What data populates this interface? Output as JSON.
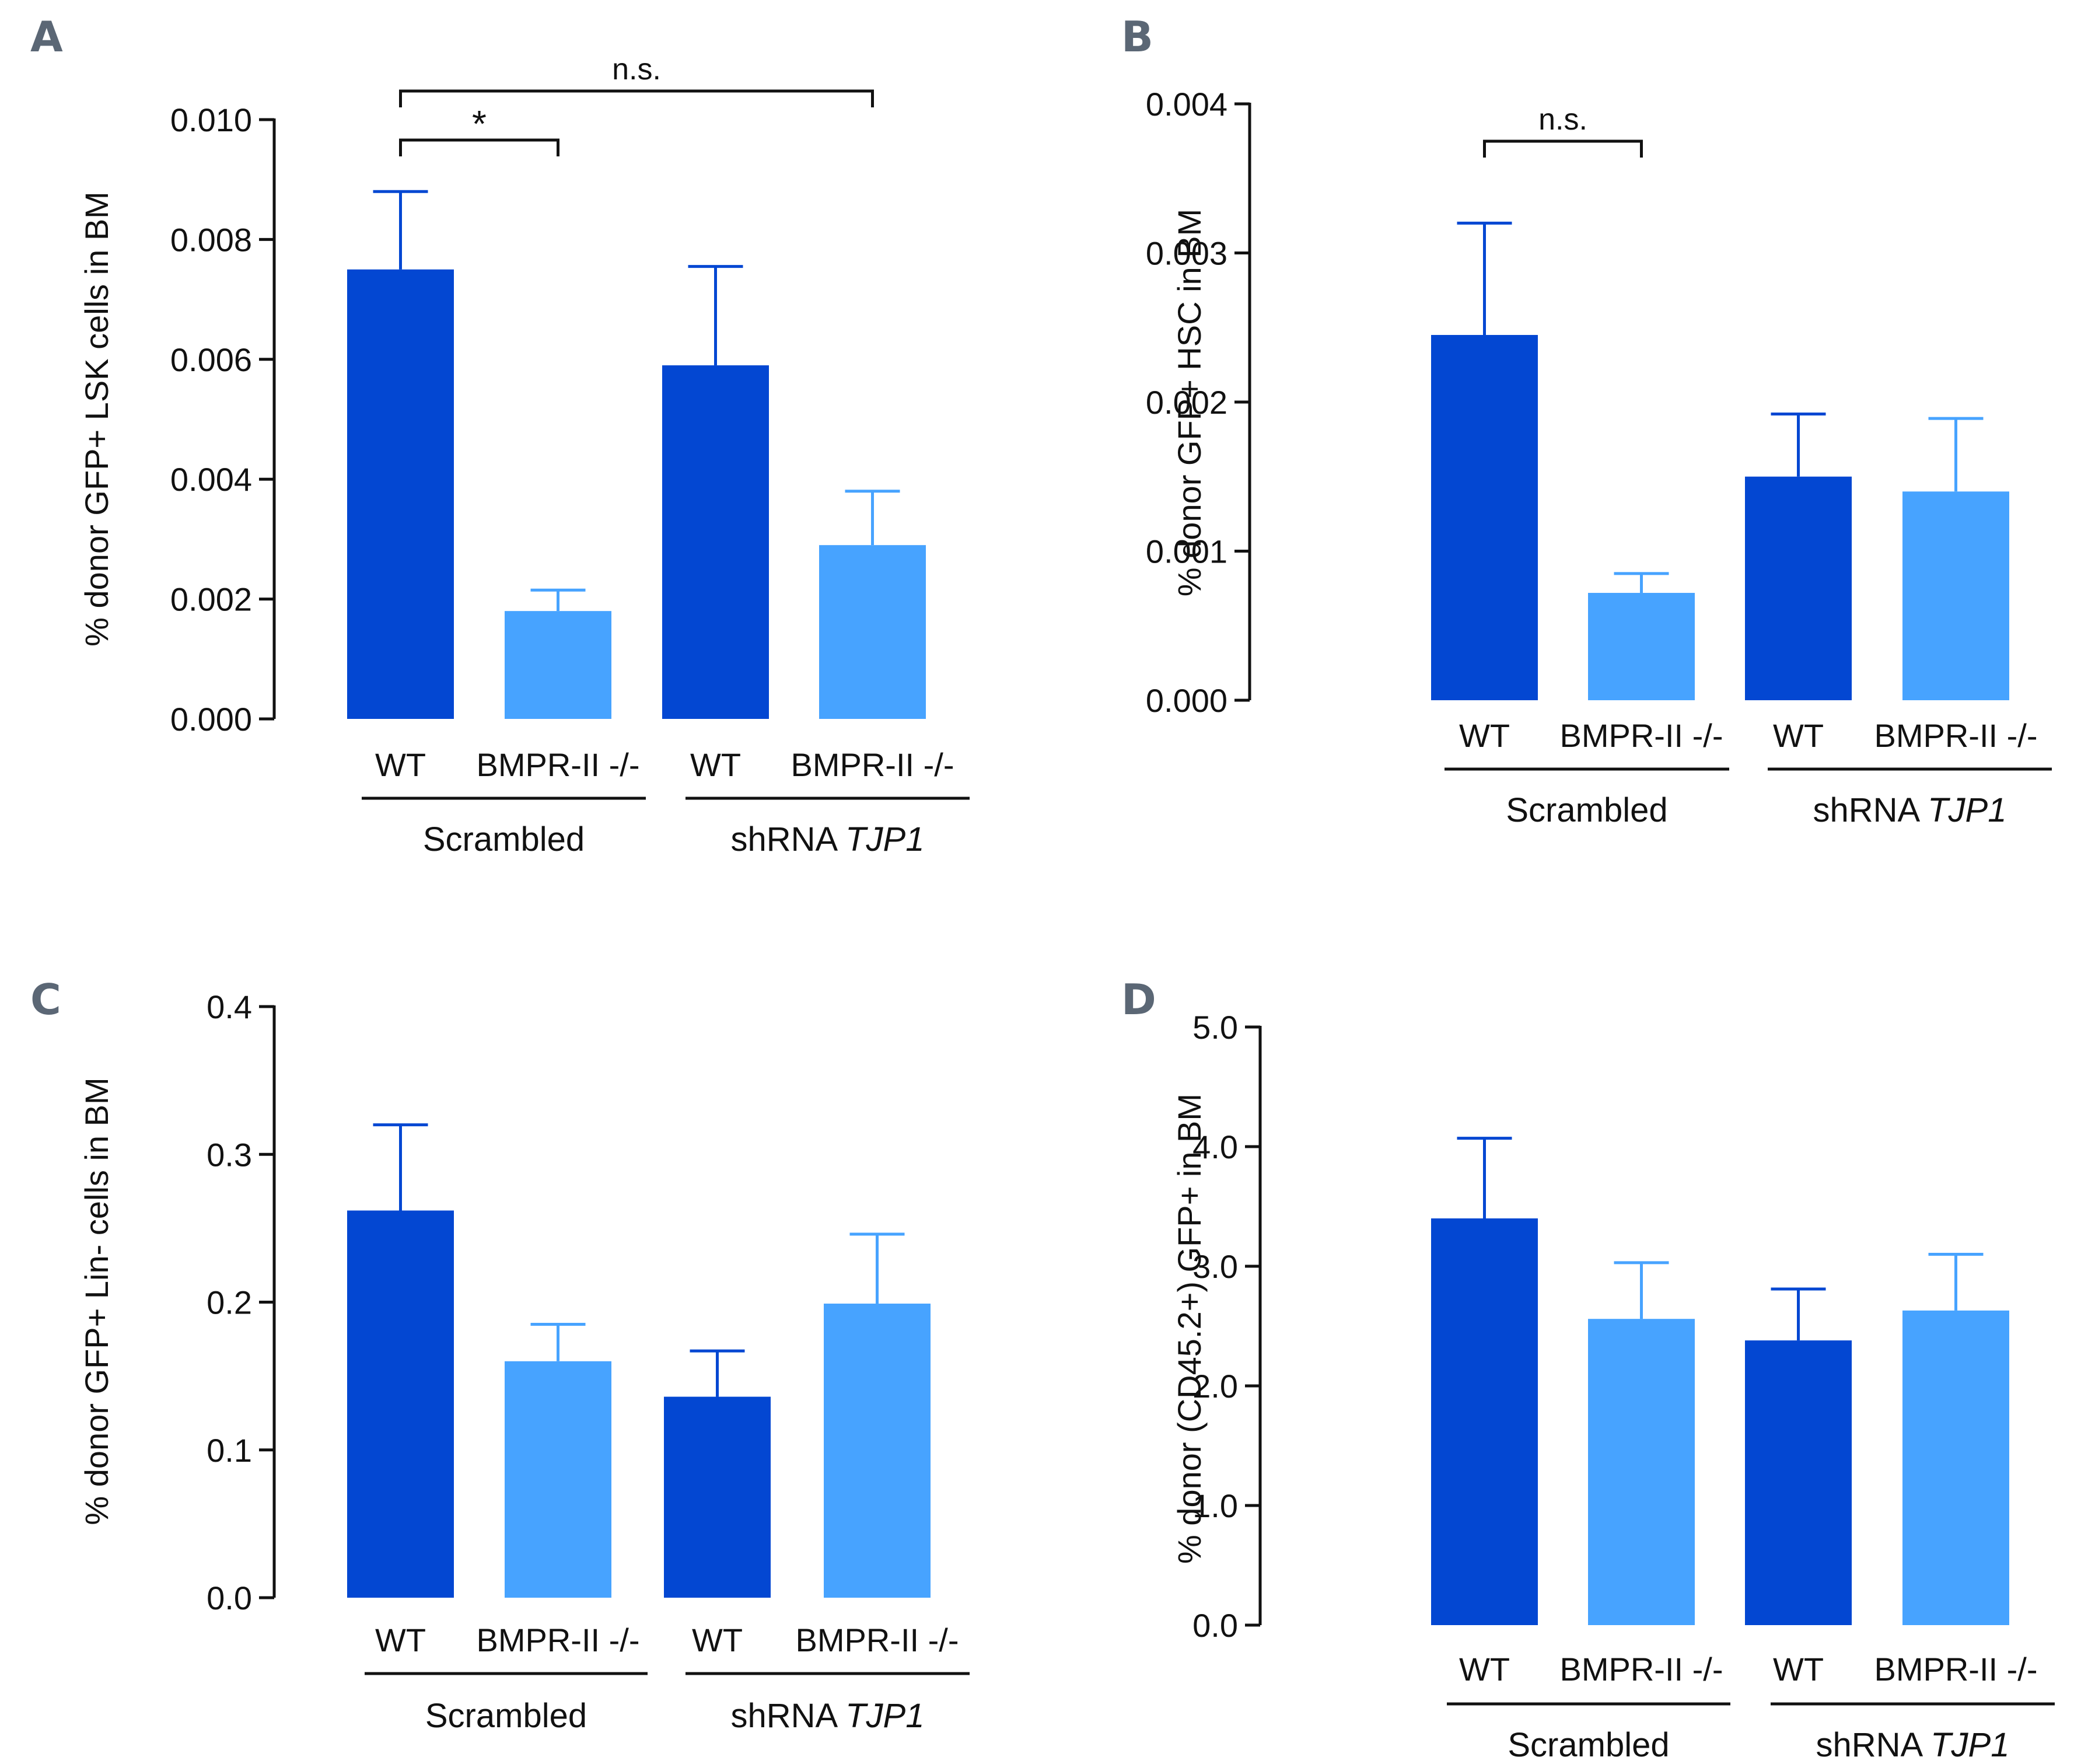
{
  "colors": {
    "wt": "#0347d2",
    "ko": "#47a3ff",
    "ink": "#111111",
    "panel": "#5b6775"
  },
  "chart_data": [
    {
      "type": "bar",
      "panel": "A",
      "ylabel": "% donor GFP+ LSK cells in BM",
      "ylim": [
        0,
        0.01
      ],
      "yticks": [
        "0.000",
        "0.002",
        "0.004",
        "0.006",
        "0.008",
        "0.010"
      ],
      "categories": [
        "WT",
        "BMPR-II -/-",
        "WT",
        "BMPR-II -/-"
      ],
      "values": [
        0.0075,
        0.0018,
        0.0059,
        0.0029
      ],
      "errors": [
        0.0013,
        0.00035,
        0.00165,
        0.0009
      ],
      "groups": [
        {
          "label": "Scrambled",
          "italic": ""
        },
        {
          "label": "shRNA ",
          "italic": "TJP1"
        }
      ],
      "annotations": [
        {
          "label": "*",
          "from": 0,
          "to": 1,
          "level": 0
        },
        {
          "label": "n.s.",
          "from": 0,
          "to": 3,
          "level": 1
        }
      ]
    },
    {
      "type": "bar",
      "panel": "B",
      "ylabel": "% donor GFP+ HSC in BM",
      "ylim": [
        0,
        0.004
      ],
      "yticks": [
        "0.000",
        "0.001",
        "0.002",
        "0.003",
        "0.004"
      ],
      "categories": [
        "WT",
        "BMPR-II -/-",
        "WT",
        "BMPR-II -/-"
      ],
      "values": [
        0.00245,
        0.00072,
        0.0015,
        0.0014
      ],
      "errors": [
        0.00075,
        0.00013,
        0.00042,
        0.00049
      ],
      "groups": [
        {
          "label": "Scrambled",
          "italic": ""
        },
        {
          "label": "shRNA ",
          "italic": "TJP1"
        }
      ],
      "annotations": [
        {
          "label": "n.s.",
          "from": 0,
          "to": 1,
          "level": 0
        }
      ]
    },
    {
      "type": "bar",
      "panel": "C",
      "ylabel": "% donor GFP+ Lin- cells in BM",
      "ylim": [
        0,
        0.4
      ],
      "yticks": [
        "0.0",
        "0.1",
        "0.2",
        "0.3",
        "0.4"
      ],
      "categories": [
        "WT",
        "BMPR-II -/-",
        "WT",
        "BMPR-II -/-"
      ],
      "values": [
        0.262,
        0.16,
        0.136,
        0.199
      ],
      "errors": [
        0.058,
        0.025,
        0.031,
        0.047
      ],
      "groups": [
        {
          "label": "Scrambled",
          "italic": ""
        },
        {
          "label": "shRNA ",
          "italic": "TJP1"
        }
      ],
      "annotations": []
    },
    {
      "type": "bar",
      "panel": "D",
      "ylabel": "% donor (CD45.2+) GFP+ in BM",
      "ylim": [
        0,
        5
      ],
      "yticks": [
        "0.0",
        "1.0",
        "2.0",
        "3.0",
        "4.0",
        "5.0"
      ],
      "categories": [
        "WT",
        "BMPR-II -/-",
        "WT",
        "BMPR-II -/-"
      ],
      "values": [
        3.4,
        2.56,
        2.38,
        2.63
      ],
      "errors": [
        0.67,
        0.47,
        0.43,
        0.47
      ],
      "groups": [
        {
          "label": "Scrambled",
          "italic": ""
        },
        {
          "label": "shRNA ",
          "italic": "TJP1"
        }
      ],
      "annotations": []
    }
  ]
}
